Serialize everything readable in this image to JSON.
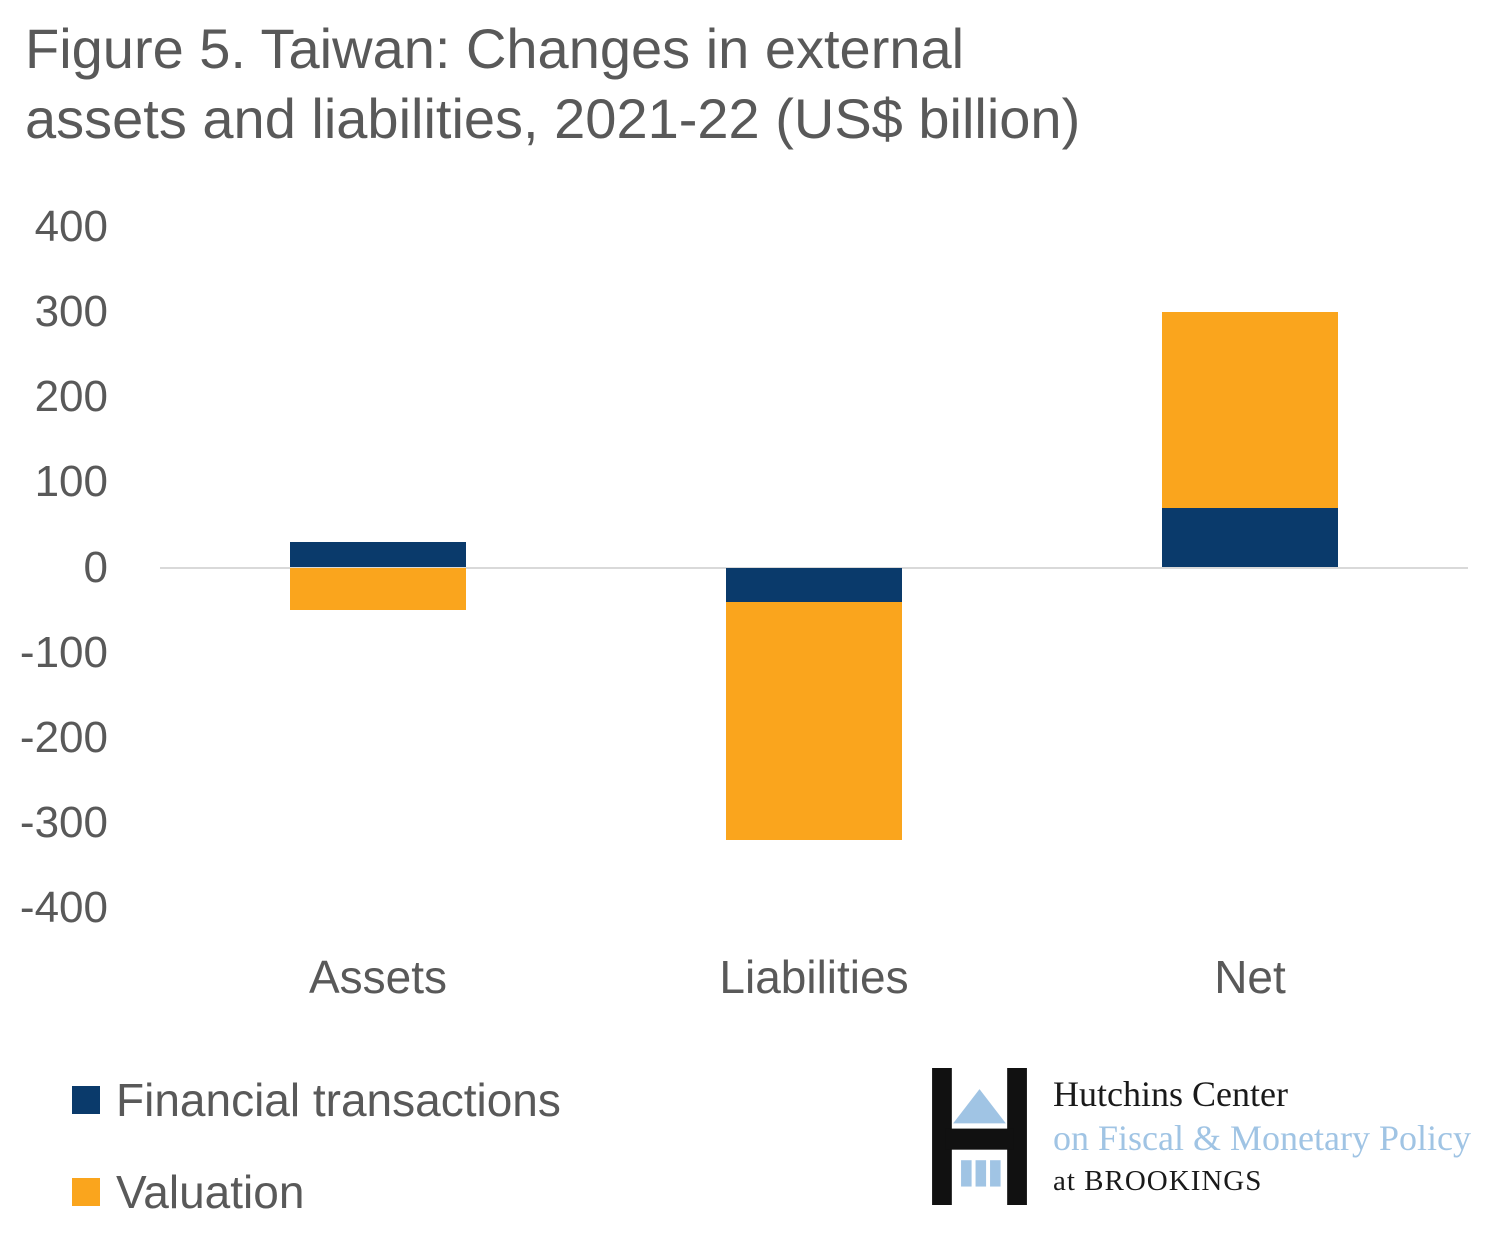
{
  "figure": {
    "title_line1": "Figure 5. Taiwan: Changes in external",
    "title_line2": "assets and liabilities, 2021-22 (US$ billion)"
  },
  "chart_data": {
    "type": "bar",
    "stacked": true,
    "title": "Figure 5. Taiwan: Changes in external assets and liabilities, 2021-22 (US$ billion)",
    "categories": [
      "Assets",
      "Liabilities",
      "Net"
    ],
    "series": [
      {
        "name": "Financial transactions",
        "color": "#0a3a6b",
        "values": [
          30,
          -40,
          70
        ]
      },
      {
        "name": "Valuation",
        "color": "#faa51d",
        "values": [
          -50,
          -280,
          230
        ]
      }
    ],
    "ylim": [
      -400,
      400
    ],
    "yticks": [
      400,
      300,
      200,
      100,
      0,
      -100,
      -200,
      -300,
      -400
    ],
    "xlabel": "",
    "ylabel": "",
    "legend_position": "bottom-left",
    "grid": "zero-line-only",
    "zero_line_color": "#d9d9d9",
    "text_color": "#595959"
  },
  "logo": {
    "line1": "Hutchins Center",
    "line2": "on Fiscal & Monetary Policy",
    "line3": "at BROOKINGS",
    "accent_color": "#a0c4e4",
    "mark_color": "#111111"
  }
}
